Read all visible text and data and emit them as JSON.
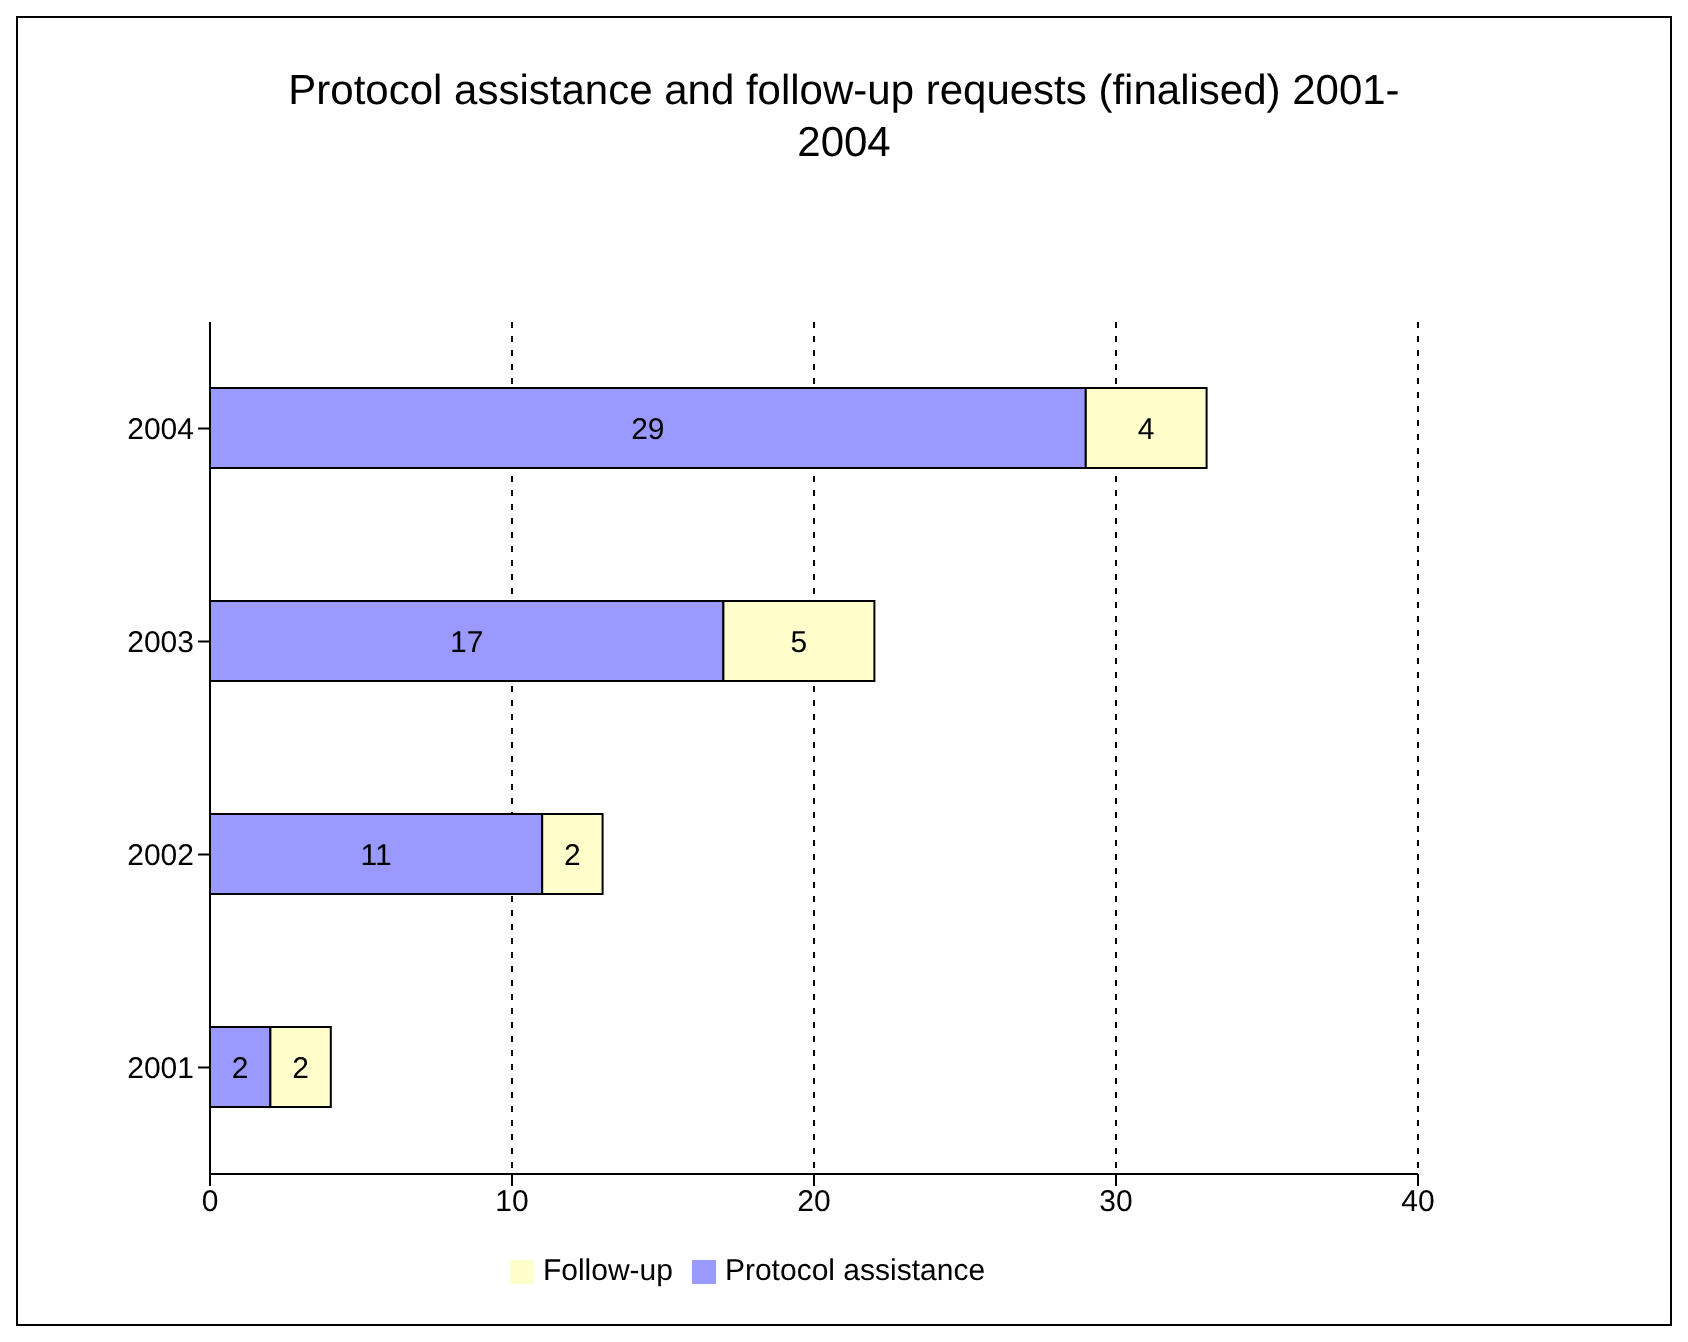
{
  "chart_data": {
    "type": "bar",
    "title": "Protocol assistance and follow-up requests (finalised) 2001-2004",
    "orientation": "horizontal",
    "stacked": true,
    "categories": [
      "2004",
      "2003",
      "2002",
      "2001"
    ],
    "series": [
      {
        "name": "Protocol assistance",
        "color": "#9999ff",
        "values": [
          29,
          17,
          11,
          2
        ]
      },
      {
        "name": "Follow-up",
        "color": "#ffffcc",
        "values": [
          4,
          5,
          2,
          2
        ]
      }
    ],
    "xlim": [
      0,
      40
    ],
    "xticks": [
      0,
      10,
      20,
      30,
      40
    ],
    "grid": "x",
    "legend": "bottom",
    "data_labels": true
  }
}
